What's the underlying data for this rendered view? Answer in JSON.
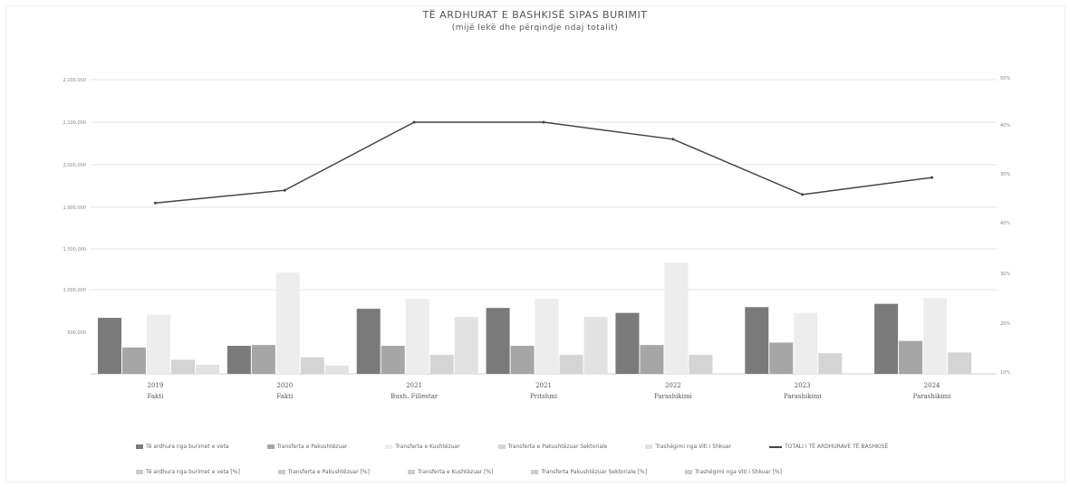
{
  "chart_data": {
    "title": "TË ARDHURAT E BASHKISË SIPAS BURIMIT",
    "subtitle": "(mijë lekë dhe përqindje ndaj totalit)",
    "categories": [
      {
        "year": "2019",
        "label": "Fakti"
      },
      {
        "year": "2020",
        "label": "Fakti"
      },
      {
        "year": "2021",
        "label": "Buxh. Fillestar"
      },
      {
        "year": "2021",
        "label": "Pritshmi"
      },
      {
        "year": "2022",
        "label": "Parashikimi"
      },
      {
        "year": "2023",
        "label": "Parashikimi"
      },
      {
        "year": "2024",
        "label": "Parashikimi"
      }
    ],
    "line_axis": {
      "ticks": [
        "2,200,000",
        "2,100,000",
        "2,000,000",
        "1,900,000"
      ]
    },
    "bar_axis": {
      "ticks": [
        "1,500,000",
        "1,000,000",
        "500,000"
      ]
    },
    "right_axis": {
      "ticks_top": [
        "50%",
        "40%",
        "30%"
      ],
      "ticks_bottom": [
        "40%",
        "30%",
        "20%",
        "10%",
        "0%"
      ]
    },
    "bar_series": [
      {
        "name": "Të ardhura nga burimet e veta",
        "color": "#7a7a7a",
        "values": [
          680000,
          340000,
          790000,
          800000,
          740000,
          810000,
          850000
        ]
      },
      {
        "name": "Transferta e Pakushtëzuar",
        "color": "#a6a6a6",
        "values": [
          320000,
          350000,
          340000,
          340000,
          350000,
          380000,
          400000
        ]
      },
      {
        "name": "Transferta e Kushtëzuar",
        "color": "#ededed",
        "values": [
          720000,
          1230000,
          910000,
          910000,
          1350000,
          740000,
          920000
        ]
      },
      {
        "name": "Transferta e Pakushtëzuar Sektoriale",
        "color": "#d4d4d4",
        "values": [
          170000,
          200000,
          230000,
          230000,
          230000,
          250000,
          260000
        ]
      },
      {
        "name": "Trashëgimi nga Viti i Shkuar",
        "color": "#e2e2e2",
        "values": [
          110000,
          100000,
          690000,
          690000,
          0,
          0,
          0
        ]
      }
    ],
    "line_series": {
      "name": "TOTALI I TË ARDHURAVE TË BASHKISË",
      "color": "#444444",
      "values": [
        1910000,
        1940000,
        2100000,
        2100000,
        2060000,
        1930000,
        1970000
      ]
    },
    "legend_pct": [
      "Të ardhura nga burimet e veta [%]",
      "Transferta e Pakushtëzuar [%]",
      "Transferta e Kushtëzuar [%]",
      "Transferta Pakushtëzuar Sektoriale [%]",
      "Trashëgimi nga Viti i Shkuar [%]"
    ],
    "legend_placement": "bottom"
  }
}
